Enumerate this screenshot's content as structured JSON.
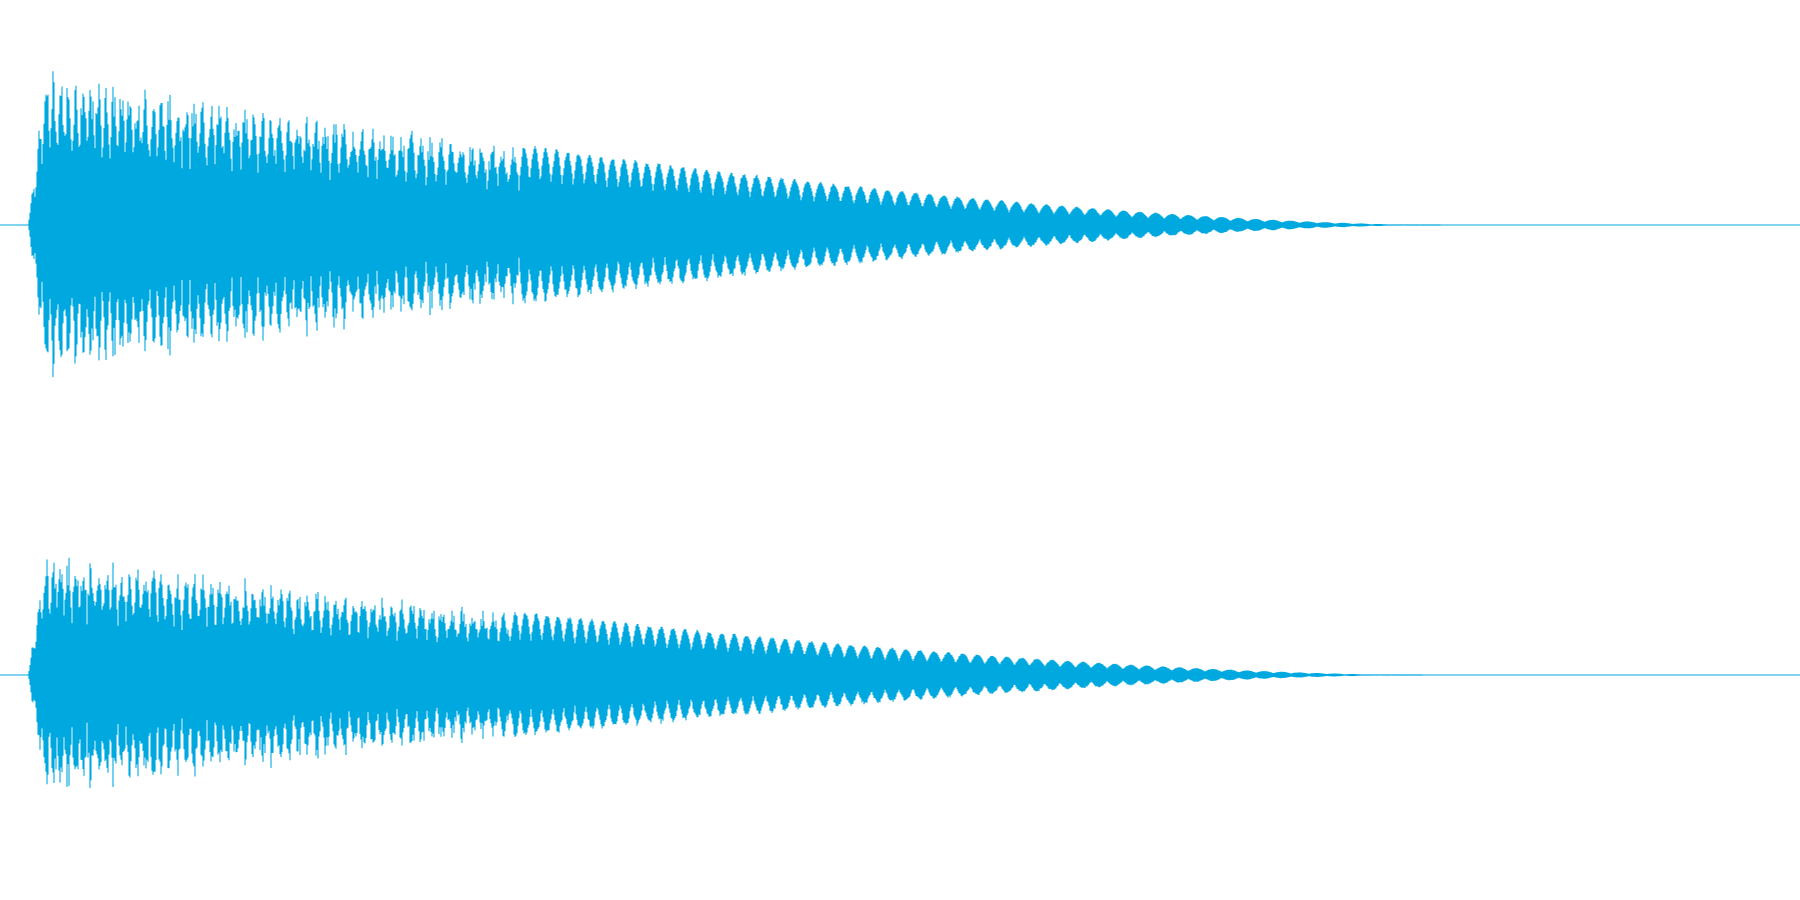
{
  "waveform": {
    "color": "#00a8e0",
    "channels": [
      {
        "peak_envelope_start": 0.85,
        "decay_end_fraction": 0.8
      },
      {
        "peak_envelope_start": 0.68,
        "decay_end_fraction": 0.79
      }
    ]
  }
}
